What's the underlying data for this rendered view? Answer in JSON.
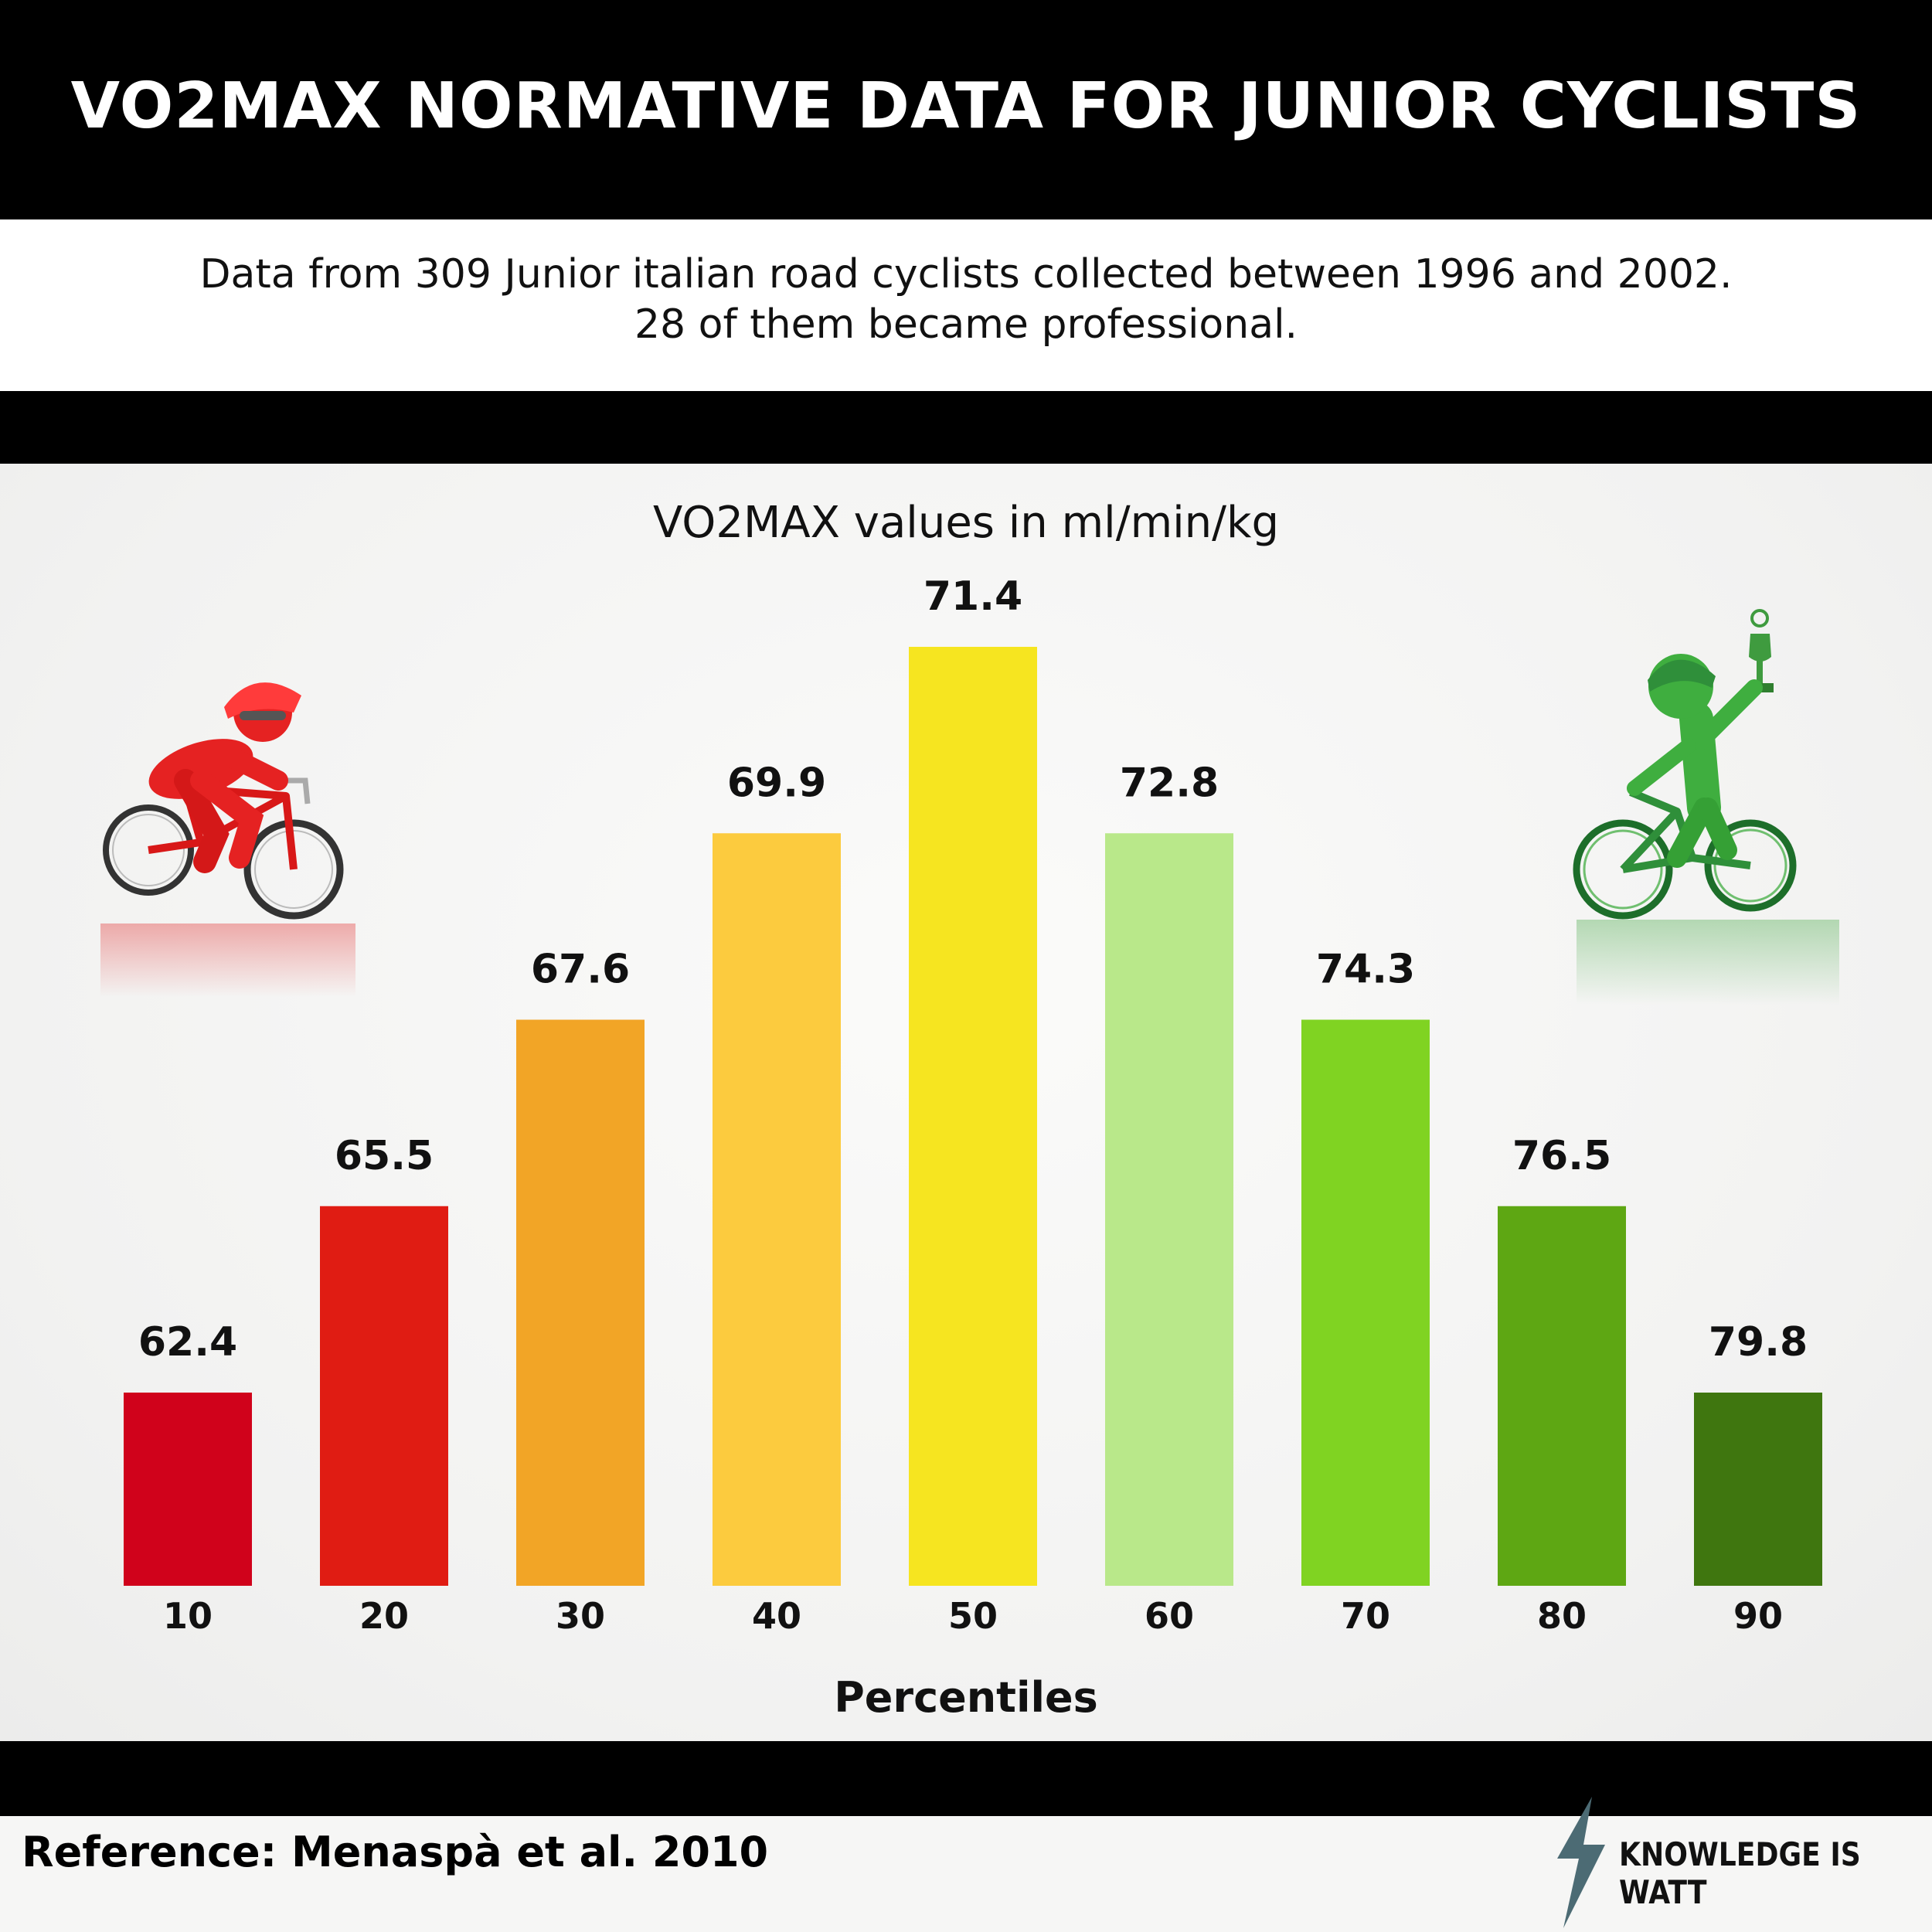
{
  "header": {
    "title": "VO2MAX NORMATIVE DATA FOR JUNIOR CYCLISTS",
    "subtitle_line1": "Data from 309 Junior italian road cyclists collected between 1996 and 2002.",
    "subtitle_line2": "28 of them became professional."
  },
  "footer": {
    "reference": "Reference: Menaspà  et al. 2010",
    "brand": "KNOWLEDGE IS WATT"
  },
  "colors": {
    "bars": [
      "#d0021b",
      "#e01c13",
      "#f2a526",
      "#fccb3e",
      "#f6e520",
      "#b9e88a",
      "#80d322",
      "#5ea713",
      "#3f760f"
    ],
    "brand_bolt": "#4c6b74"
  },
  "icons": [
    "red-cyclist-icon",
    "green-cyclist-trophy-icon",
    "lightning-bolt-icon"
  ],
  "chart_data": {
    "type": "bar",
    "title": "VO2MAX values in ml/min/kg",
    "xlabel": "Percentiles",
    "ylabel": "",
    "categories": [
      "10",
      "20",
      "30",
      "40",
      "50",
      "60",
      "70",
      "80",
      "90"
    ],
    "values": [
      62.4,
      65.5,
      67.6,
      69.9,
      71.4,
      72.8,
      74.3,
      76.5,
      79.8
    ],
    "grid": false,
    "legend": "none"
  }
}
